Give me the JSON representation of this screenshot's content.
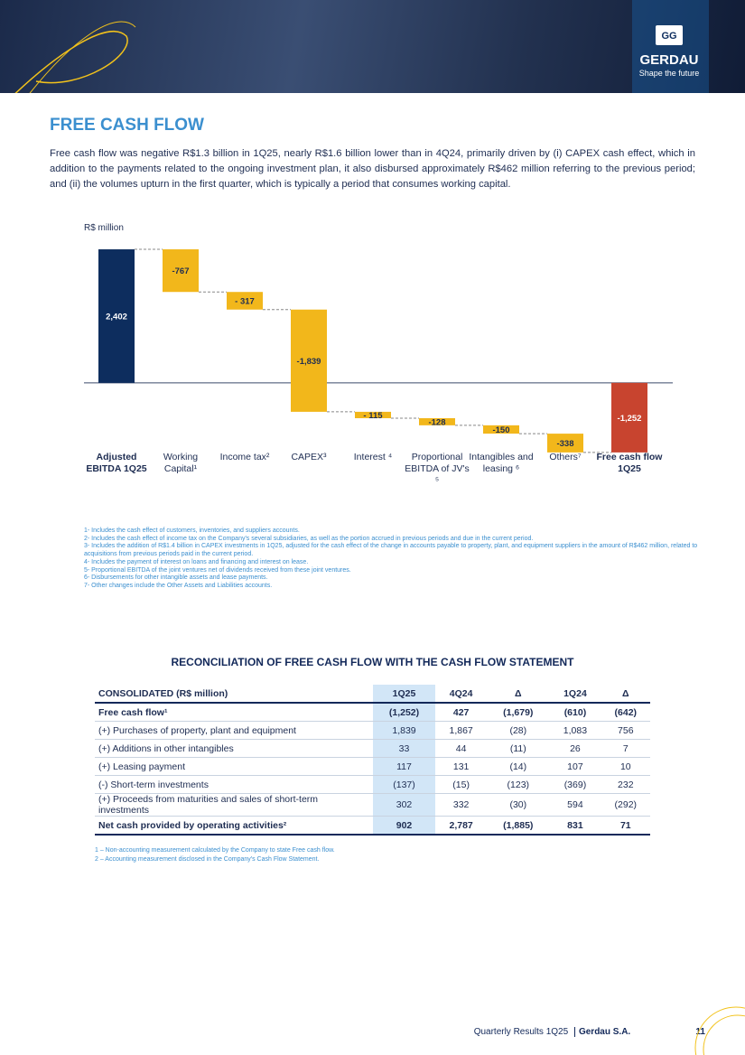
{
  "header": {
    "brand": "GERDAU",
    "tagline": "Shape the future"
  },
  "section_title": "FREE CASH FLOW",
  "intro": "Free cash flow was negative R$1.3 billion in 1Q25, nearly R$1.6 billion lower than in 4Q24, primarily driven by (i) CAPEX cash effect, which in addition to the payments related to the ongoing investment plan, it also disbursed approximately R$462 million referring to the previous period; and (ii) the volumes upturn in the first quarter, which is typically a period that consumes working capital.",
  "chart_data": {
    "type": "waterfall",
    "y_axis_label": "R$ million",
    "categories": [
      "Adjusted EBITDA 1Q25",
      "Working Capital¹",
      "Income tax²",
      "CAPEX³",
      "Interest ⁴",
      "Proportional EBITDA of JV's ⁵",
      "Intangibles and leasing ⁶",
      "Others⁷",
      "Free cash flow 1Q25"
    ],
    "values": [
      2402,
      -767,
      -317,
      -1839,
      -115,
      -128,
      -150,
      -338,
      -1252
    ],
    "value_labels": [
      "2,402",
      "-767",
      "- 317",
      "-1,839",
      "- 115",
      "-128",
      "-150",
      "-338",
      "-1,252"
    ],
    "colors": [
      "#0d2d5e",
      "#f2b71b",
      "#f2b71b",
      "#f2b71b",
      "#f2b71b",
      "#f2b71b",
      "#f2b71b",
      "#f2b71b",
      "#c8442f"
    ],
    "ylim": [
      -1400,
      2500
    ]
  },
  "chart_notes": [
    "1- Includes the cash effect of customers, inventories, and suppliers accounts.",
    "2- Includes the cash effect of income tax on the Company's several subsidiaries, as well as the portion accrued in previous periods and due in the current period.",
    "3- Includes the addition of R$1.4 billion in CAPEX investments in 1Q25, adjusted for the cash effect of the change in accounts payable to property, plant, and equipment suppliers in the amount of R$462 million, related to acquisitions from previous periods paid in the current period.",
    "4- Includes the payment of interest on loans and financing and interest on lease.",
    "5- Proportional EBITDA of the joint ventures net of dividends received from these joint ventures.",
    "6- Disbursements for other intangible assets and lease payments.",
    "7- Other changes include the Other Assets and Liabilities accounts."
  ],
  "table": {
    "title": "RECONCILIATION OF FREE CASH FLOW WITH THE CASH FLOW STATEMENT",
    "header": [
      "CONSOLIDATED (R$ million)",
      "1Q25",
      "4Q24",
      "Δ",
      "1Q24",
      "Δ"
    ],
    "rows": [
      [
        "Free cash flow¹",
        "(1,252)",
        "427",
        "(1,679)",
        "(610)",
        "(642)"
      ],
      [
        "(+) Purchases of property, plant and equipment",
        "1,839",
        "1,867",
        "(28)",
        "1,083",
        "756"
      ],
      [
        "(+) Additions in other intangibles",
        "33",
        "44",
        "(11)",
        "26",
        "7"
      ],
      [
        "(+) Leasing payment",
        "117",
        "131",
        "(14)",
        "107",
        "10"
      ],
      [
        "(-) Short-term investments",
        "(137)",
        "(15)",
        "(123)",
        "(369)",
        "232"
      ],
      [
        "(+) Proceeds from maturities and sales of short-term investments",
        "302",
        "332",
        "(30)",
        "594",
        "(292)"
      ],
      [
        "Net cash provided by operating activities²",
        "902",
        "2,787",
        "(1,885)",
        "831",
        "71"
      ]
    ],
    "notes": [
      "1 – Non-accounting measurement calculated by the Company to state Free cash flow.",
      "2 – Accounting measurement disclosed in the Company's Cash Flow Statement."
    ]
  },
  "footer": {
    "report": "Quarterly Results 1Q25",
    "company": "Gerdau S.A.",
    "page": "11"
  }
}
